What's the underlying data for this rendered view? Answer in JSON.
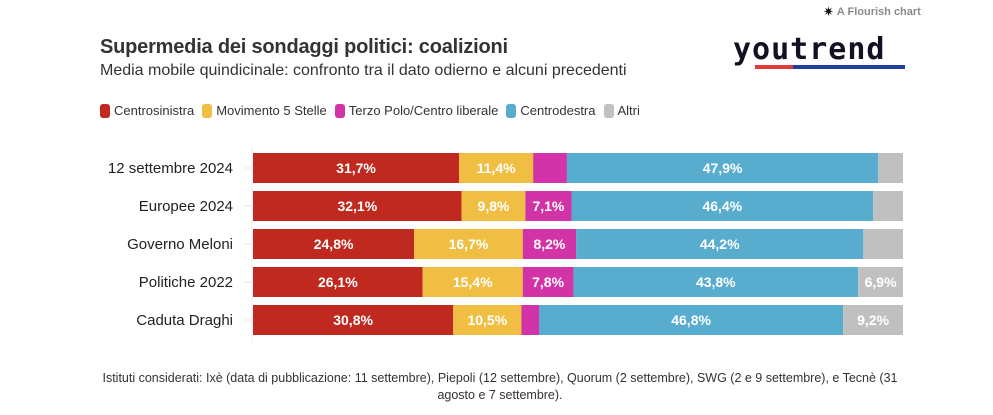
{
  "branding": {
    "flourish_label": "A Flourish chart",
    "flourish_icon": "asterisk-icon",
    "logo_text": "youtrend"
  },
  "chart_data": {
    "type": "bar",
    "orientation": "horizontal",
    "stacked": true,
    "title": "Supermedia dei sondaggi politici: coalizioni",
    "subtitle": "Media mobile quindicinale: confronto tra il dato odierno e alcuni precedenti",
    "xlabel": "",
    "ylabel": "",
    "xlim": [
      0,
      100
    ],
    "legend_position": "top-left",
    "grid": false,
    "categories": [
      "12 settembre 2024",
      "Europee 2024",
      "Governo Meloni",
      "Politiche 2022",
      "Caduta Draghi"
    ],
    "series": [
      {
        "name": "Centrosinistra",
        "color": "#c0291f",
        "values": [
          31.7,
          32.1,
          24.8,
          26.1,
          30.8
        ],
        "labels": [
          "31,7%",
          "32,1%",
          "24,8%",
          "26,1%",
          "30,8%"
        ]
      },
      {
        "name": "Movimento 5 Stelle",
        "color": "#efbe43",
        "values": [
          11.4,
          9.8,
          16.7,
          15.4,
          10.5
        ],
        "labels": [
          "11,4%",
          "9,8%",
          "16,7%",
          "15,4%",
          "10,5%"
        ]
      },
      {
        "name": "Terzo Polo/Centro liberale",
        "color": "#d234a8",
        "values": [
          5.2,
          7.1,
          8.2,
          7.8,
          2.7
        ],
        "labels": [
          "",
          "7,1%",
          "8,2%",
          "7,8%",
          ""
        ]
      },
      {
        "name": "Centrodestra",
        "color": "#58adcf",
        "values": [
          47.9,
          46.4,
          44.2,
          43.8,
          46.8
        ],
        "labels": [
          "47,9%",
          "46,4%",
          "44,2%",
          "43,8%",
          "46,8%"
        ]
      },
      {
        "name": "Altri",
        "color": "#c0c0c0",
        "values": [
          3.8,
          4.6,
          6.1,
          6.9,
          9.2
        ],
        "labels": [
          "",
          "",
          "",
          "6,9%",
          "9,2%"
        ]
      }
    ]
  },
  "footer": {
    "note": "Istituti considerati: Ixè (data di pubblicazione: 11 settembre), Piepoli (12 settembre), Quorum (2 settembre), SWG (2 e 9 settembre), e Tecnè (31 agosto e 7 settembre)."
  }
}
